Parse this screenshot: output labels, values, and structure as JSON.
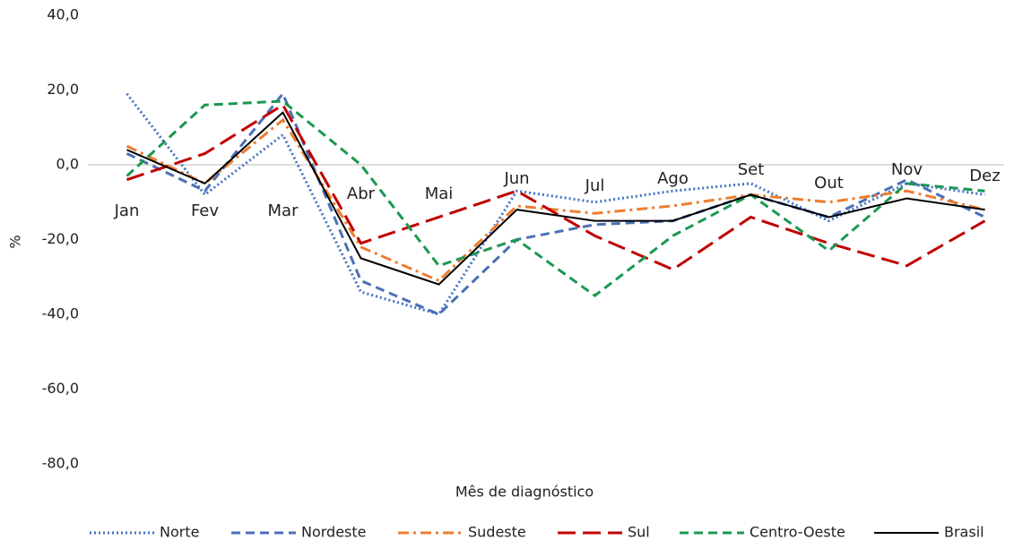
{
  "chart_data": {
    "type": "line",
    "y_label": "%",
    "x_label": "Mês de diagnóstico",
    "categories": [
      "Jan",
      "Fev",
      "Mar",
      "Abr",
      "Mai",
      "Jun",
      "Jul",
      "Ago",
      "Set",
      "Out",
      "Nov",
      "Dez"
    ],
    "ylim": [
      -80,
      40
    ],
    "yticks": [
      {
        "value": -80,
        "label": "-80,0"
      },
      {
        "value": -60,
        "label": "-60,0"
      },
      {
        "value": -40,
        "label": "-40,0"
      },
      {
        "value": -20,
        "label": "-20,0"
      },
      {
        "value": 0,
        "label": "0,0"
      },
      {
        "value": 20,
        "label": "20,0"
      },
      {
        "value": 40,
        "label": "40,0"
      }
    ],
    "grid": false,
    "legend": "bottom",
    "series": [
      {
        "name": "Norte",
        "color": "#4472c4",
        "dash": "dotted",
        "values": [
          19,
          -8,
          8,
          -34,
          -40,
          -7,
          -10,
          -7,
          -5,
          -15,
          -5,
          -8
        ]
      },
      {
        "name": "Nordeste",
        "color": "#4a6fb5",
        "dash": "dashed",
        "values": [
          3,
          -7,
          19,
          -31,
          -40,
          -20,
          -16,
          -15,
          -8,
          -14,
          -4,
          -14
        ]
      },
      {
        "name": "Sudeste",
        "color": "#ed7d31",
        "dash": "dash-dot",
        "values": [
          5,
          -5,
          12,
          -22,
          -31,
          -11,
          -13,
          -11,
          -8,
          -10,
          -7,
          -12
        ]
      },
      {
        "name": "Sul",
        "color": "#c00000",
        "dash": "long-dash",
        "values": [
          -4,
          3,
          16,
          -21,
          -14,
          -7,
          -19,
          -28,
          -14,
          -21,
          -27,
          -15
        ]
      },
      {
        "name": "Centro-Oeste",
        "color": "#1a9850",
        "dash": "dashed",
        "values": [
          -3,
          16,
          17,
          0,
          -27,
          -20,
          -35,
          -19,
          -8,
          -23,
          -5,
          -7
        ]
      },
      {
        "name": "Brasil",
        "color": "#000000",
        "dash": "solid",
        "values": [
          4,
          -5,
          14,
          -25,
          -32,
          -12,
          -15,
          -15,
          -8,
          -14,
          -9,
          -12
        ]
      }
    ]
  }
}
